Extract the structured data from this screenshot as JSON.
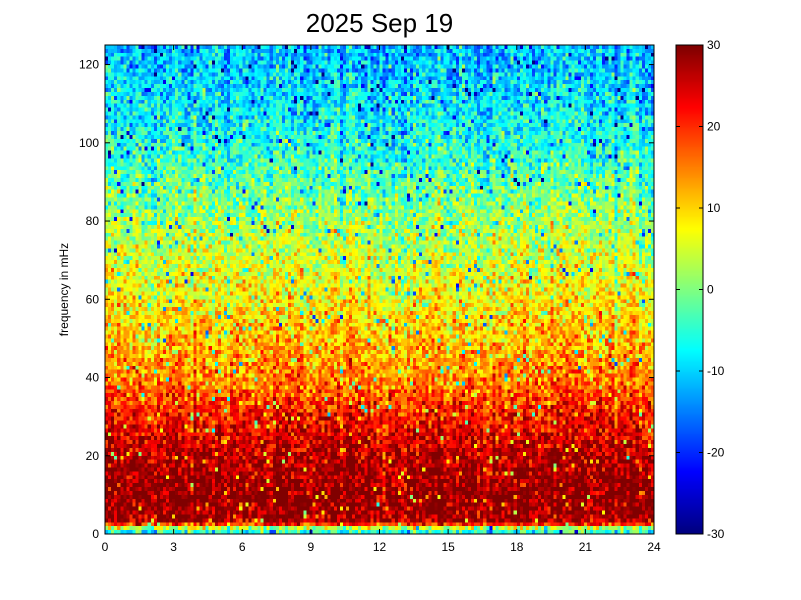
{
  "chart_data": {
    "type": "heatmap",
    "title": "2025 Sep 19",
    "xlabel": "",
    "ylabel": "frequency in mHz",
    "xlim": [
      0,
      24
    ],
    "ylim": [
      0,
      125
    ],
    "x_ticks": [
      "0",
      "3",
      "6",
      "9",
      "12",
      "15",
      "18",
      "21",
      "24"
    ],
    "y_ticks": [
      "0",
      "20",
      "40",
      "60",
      "80",
      "100",
      "120"
    ],
    "colorbar": {
      "colormap": "jet",
      "clim": [
        -30,
        30
      ],
      "ticks": [
        "30",
        "20",
        "10",
        "0",
        "-10",
        "-20",
        "-30"
      ]
    },
    "x_tick_values": [
      0,
      3,
      6,
      9,
      12,
      15,
      18,
      21,
      24
    ],
    "y_tick_values": [
      0,
      20,
      40,
      60,
      80,
      100,
      120
    ],
    "colorbar_tick_values": [
      30,
      20,
      10,
      0,
      -10,
      -20,
      -30
    ],
    "grid": false,
    "profile_by_frequency": {
      "frequency_mHz": [
        1,
        3,
        10,
        20,
        30,
        40,
        60,
        80,
        100,
        125
      ],
      "approx_value": [
        -5,
        28,
        30,
        27,
        22,
        15,
        8,
        2,
        -6,
        -12
      ]
    }
  }
}
